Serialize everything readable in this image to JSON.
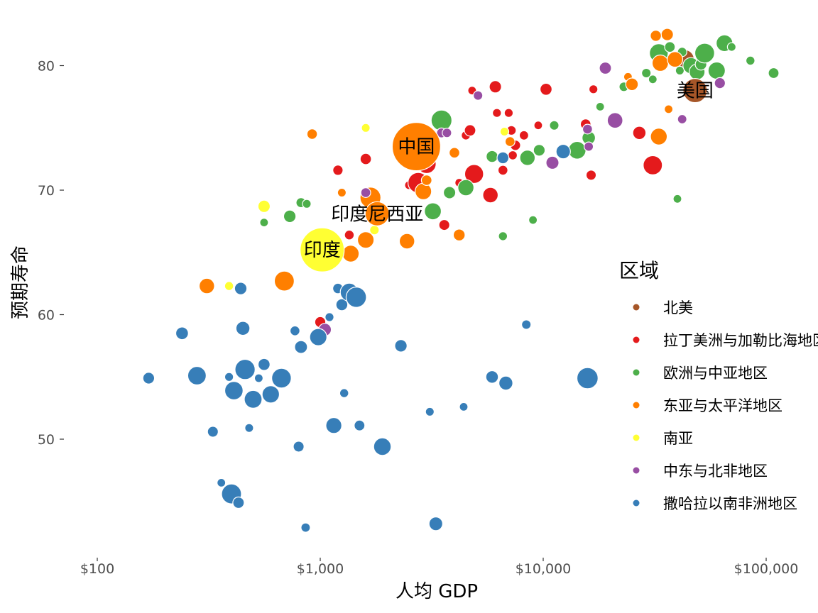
{
  "chart_data": {
    "type": "scatter",
    "title": "",
    "xlabel": "人均 GDP",
    "ylabel": "预期寿命",
    "x_scale": "log",
    "xlim": [
      80,
      140000
    ],
    "ylim": [
      41.5,
      84
    ],
    "x_ticks": [
      {
        "value": 100,
        "label": "$100"
      },
      {
        "value": 1000,
        "label": "$1,000"
      },
      {
        "value": 10000,
        "label": "$10,000"
      },
      {
        "value": 100000,
        "label": "$100,000"
      }
    ],
    "y_ticks": [
      {
        "value": 50,
        "label": "50"
      },
      {
        "value": 60,
        "label": "60"
      },
      {
        "value": 70,
        "label": "70"
      },
      {
        "value": 80,
        "label": "80"
      }
    ],
    "grid": false,
    "legend": {
      "title": "区域",
      "position": "right"
    },
    "series": [
      {
        "name": "北美",
        "color": "#a65628",
        "points": [
          [
            48000,
            78.0
          ],
          [
            43000,
            80.5
          ]
        ]
      },
      {
        "name": "拉丁美洲与加勒比海地区",
        "color": "#e41a1c",
        "points": [
          [
            1000,
            59.4
          ],
          [
            1200,
            71.6
          ],
          [
            1350,
            66.4
          ],
          [
            1600,
            72.5
          ],
          [
            2500,
            70.4
          ],
          [
            2750,
            70.6
          ],
          [
            3000,
            72.1
          ],
          [
            3200,
            73.6
          ],
          [
            3600,
            67.2
          ],
          [
            4200,
            70.6
          ],
          [
            4500,
            74.4
          ],
          [
            4700,
            74.8
          ],
          [
            4800,
            78.0
          ],
          [
            4900,
            71.3
          ],
          [
            5800,
            69.6
          ],
          [
            6100,
            78.3
          ],
          [
            6200,
            76.2
          ],
          [
            6600,
            71.6
          ],
          [
            7000,
            76.2
          ],
          [
            7200,
            74.8
          ],
          [
            7300,
            72.8
          ],
          [
            7500,
            73.6
          ],
          [
            8200,
            74.4
          ],
          [
            9500,
            75.2
          ],
          [
            10300,
            78.1
          ],
          [
            15500,
            75.3
          ],
          [
            16400,
            71.2
          ],
          [
            16800,
            78.1
          ],
          [
            27000,
            74.6
          ],
          [
            31000,
            72.0
          ]
        ]
      },
      {
        "name": "欧洲与中亚地区",
        "color": "#4daf4a",
        "points": [
          [
            730,
            67.9
          ],
          [
            820,
            69.0
          ],
          [
            870,
            68.9
          ],
          [
            560,
            67.4
          ],
          [
            3200,
            68.3
          ],
          [
            3500,
            75.6
          ],
          [
            3800,
            69.8
          ],
          [
            4500,
            70.2
          ],
          [
            5900,
            72.7
          ],
          [
            6600,
            66.3
          ],
          [
            8500,
            72.6
          ],
          [
            9000,
            67.6
          ],
          [
            9600,
            73.2
          ],
          [
            11200,
            75.2
          ],
          [
            14200,
            73.2
          ],
          [
            16000,
            74.2
          ],
          [
            18000,
            76.7
          ],
          [
            23000,
            78.3
          ],
          [
            29000,
            79.4
          ],
          [
            31000,
            78.9
          ],
          [
            33000,
            81.0
          ],
          [
            37000,
            81.5
          ],
          [
            40000,
            69.3
          ],
          [
            41000,
            79.6
          ],
          [
            42000,
            81.1
          ],
          [
            46000,
            80.0
          ],
          [
            49000,
            79.5
          ],
          [
            51000,
            80.1
          ],
          [
            53000,
            81.0
          ],
          [
            60000,
            79.6
          ],
          [
            65000,
            81.8
          ],
          [
            70000,
            81.5
          ],
          [
            85000,
            80.4
          ],
          [
            108000,
            79.4
          ]
        ]
      },
      {
        "name": "东亚与太平洋地区",
        "color": "#ff7f00",
        "points": [
          [
            310,
            62.3
          ],
          [
            690,
            62.7
          ],
          [
            920,
            74.5
          ],
          [
            1250,
            69.8
          ],
          [
            1370,
            64.9
          ],
          [
            1350,
            61.2
          ],
          [
            1600,
            66.0
          ],
          [
            1680,
            69.4
          ],
          [
            1750,
            68.4
          ],
          [
            2450,
            65.9
          ],
          [
            2700,
            73.5
          ],
          [
            2900,
            69.9
          ],
          [
            3000,
            70.8
          ],
          [
            4000,
            73.0
          ],
          [
            4200,
            66.4
          ],
          [
            7100,
            73.9
          ],
          [
            24000,
            79.1
          ],
          [
            25000,
            78.5
          ],
          [
            33000,
            74.3
          ],
          [
            33500,
            80.2
          ],
          [
            36000,
            82.5
          ],
          [
            36500,
            76.5
          ],
          [
            39000,
            80.5
          ],
          [
            32000,
            82.4
          ]
        ]
      },
      {
        "name": "南亚",
        "color": "#ffff33",
        "points": [
          [
            390,
            62.3
          ],
          [
            560,
            68.7
          ],
          [
            1600,
            75.0
          ],
          [
            1750,
            66.8
          ],
          [
            1050,
            65.2
          ],
          [
            6700,
            74.7
          ]
        ]
      },
      {
        "name": "中东与北非地区",
        "color": "#984ea3",
        "points": [
          [
            1000,
            64.6
          ],
          [
            1050,
            58.8
          ],
          [
            1600,
            69.8
          ],
          [
            2600,
            73.2
          ],
          [
            3500,
            74.6
          ],
          [
            3700,
            74.6
          ],
          [
            5100,
            77.6
          ],
          [
            11000,
            72.2
          ],
          [
            15800,
            74.9
          ],
          [
            16000,
            73.5
          ],
          [
            19000,
            79.8
          ],
          [
            21000,
            75.6
          ],
          [
            42000,
            75.7
          ],
          [
            62000,
            78.6
          ]
        ]
      },
      {
        "name": "撒哈拉以南非洲地区",
        "color": "#377eb8",
        "points": [
          [
            170,
            54.9
          ],
          [
            240,
            58.5
          ],
          [
            280,
            55.1
          ],
          [
            330,
            50.6
          ],
          [
            360,
            46.5
          ],
          [
            390,
            55.0
          ],
          [
            400,
            45.6
          ],
          [
            410,
            53.9
          ],
          [
            430,
            44.9
          ],
          [
            440,
            62.1
          ],
          [
            450,
            58.9
          ],
          [
            460,
            55.6
          ],
          [
            480,
            50.9
          ],
          [
            500,
            53.2
          ],
          [
            530,
            54.9
          ],
          [
            560,
            56.0
          ],
          [
            600,
            53.6
          ],
          [
            670,
            54.9
          ],
          [
            770,
            58.7
          ],
          [
            800,
            49.4
          ],
          [
            820,
            57.4
          ],
          [
            860,
            42.9
          ],
          [
            980,
            58.2
          ],
          [
            1100,
            59.8
          ],
          [
            1150,
            51.1
          ],
          [
            1200,
            62.1
          ],
          [
            1250,
            60.8
          ],
          [
            1280,
            53.7
          ],
          [
            1350,
            61.8
          ],
          [
            1450,
            61.4
          ],
          [
            1500,
            51.1
          ],
          [
            1900,
            49.4
          ],
          [
            2300,
            57.5
          ],
          [
            3100,
            52.2
          ],
          [
            3300,
            43.2
          ],
          [
            4400,
            52.6
          ],
          [
            5900,
            55.0
          ],
          [
            6600,
            72.6
          ],
          [
            6800,
            54.5
          ],
          [
            8400,
            59.2
          ],
          [
            12300,
            73.1
          ],
          [
            15800,
            54.9
          ]
        ]
      }
    ],
    "annotations": [
      {
        "text": "美国",
        "x": 48000,
        "y": 78.0
      },
      {
        "text": "中国",
        "x": 2700,
        "y": 73.5
      },
      {
        "text": "印度尼西亚",
        "x": 1800,
        "y": 68.1
      },
      {
        "text": "印度",
        "x": 1020,
        "y": 65.2
      }
    ]
  }
}
